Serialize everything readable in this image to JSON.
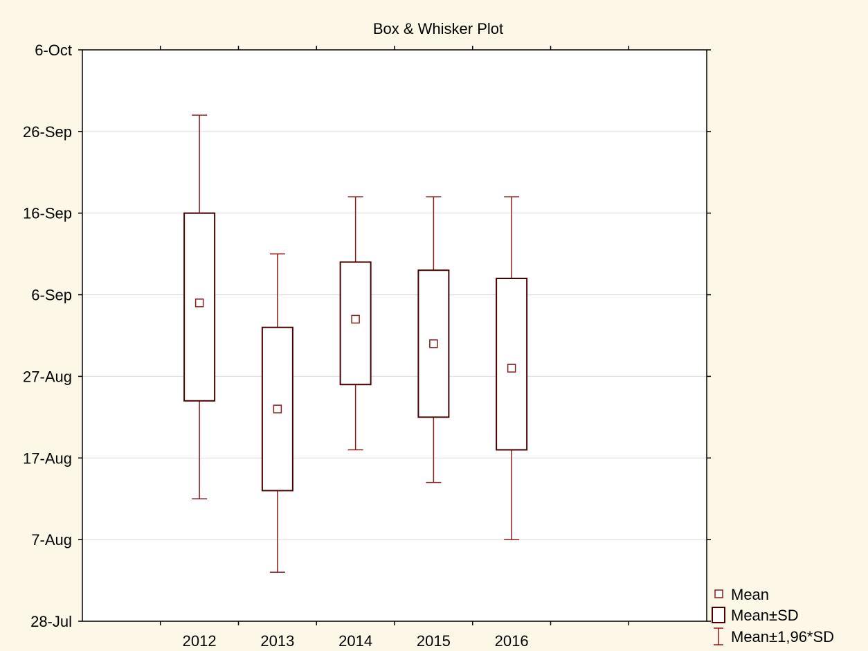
{
  "chart_data": {
    "type": "box",
    "title": "Box & Whisker Plot",
    "xlabel": "",
    "ylabel": "",
    "categories": [
      "2012",
      "2013",
      "2014",
      "2015",
      "2016"
    ],
    "y_ticks": [
      {
        "value": "2012-07-28",
        "label": "28-Jul"
      },
      {
        "value": "2012-08-07",
        "label": "7-Aug"
      },
      {
        "value": "2012-08-17",
        "label": "17-Aug"
      },
      {
        "value": "2012-08-27",
        "label": "27-Aug"
      },
      {
        "value": "2012-09-06",
        "label": "6-Sep"
      },
      {
        "value": "2012-09-16",
        "label": "16-Sep"
      },
      {
        "value": "2012-09-26",
        "label": "26-Sep"
      },
      {
        "value": "2012-10-06",
        "label": "6-Oct"
      }
    ],
    "ylim": [
      "2012-07-28",
      "2012-10-06"
    ],
    "series": [
      {
        "category": "2012",
        "mean": "2012-09-05",
        "sd_low": "2012-08-24",
        "sd_high": "2012-09-16",
        "whisker_low": "2012-08-12",
        "whisker_high": "2012-09-28"
      },
      {
        "category": "2013",
        "mean": "2012-08-23",
        "sd_low": "2012-08-13",
        "sd_high": "2012-09-02",
        "whisker_low": "2012-08-03",
        "whisker_high": "2012-09-11"
      },
      {
        "category": "2014",
        "mean": "2012-09-03",
        "sd_low": "2012-08-26",
        "sd_high": "2012-09-10",
        "whisker_low": "2012-08-18",
        "whisker_high": "2012-09-18"
      },
      {
        "category": "2015",
        "mean": "2012-08-31",
        "sd_low": "2012-08-22",
        "sd_high": "2012-09-09",
        "whisker_low": "2012-08-14",
        "whisker_high": "2012-09-18"
      },
      {
        "category": "2016",
        "mean": "2012-08-28",
        "sd_low": "2012-08-18",
        "sd_high": "2012-09-08",
        "whisker_low": "2012-08-07",
        "whisker_high": "2012-09-18"
      }
    ],
    "grid": true,
    "legend_position": "bottom-right",
    "legend": [
      {
        "kind": "mean",
        "label": "Mean"
      },
      {
        "kind": "box",
        "label": "Mean±SD"
      },
      {
        "kind": "whisker",
        "label": "Mean±1,96*SD"
      }
    ],
    "colors": {
      "background": "#fcf7e6",
      "plot_background": "#ffffff",
      "series": "#8b1a1a",
      "box": "#4a0000",
      "grid": "#d9d9d9",
      "axis": "#000000"
    }
  }
}
